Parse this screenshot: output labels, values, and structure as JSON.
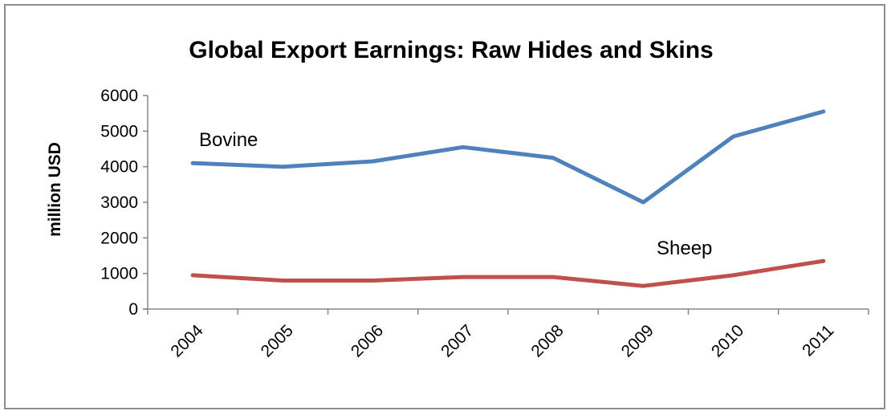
{
  "chart_data": {
    "type": "line",
    "title": "Global Export Earnings: Raw Hides and Skins",
    "xlabel": "",
    "ylabel": "million USD",
    "categories": [
      "2004",
      "2005",
      "2006",
      "2007",
      "2008",
      "2009",
      "2010",
      "2011"
    ],
    "ylim": [
      0,
      6000
    ],
    "yticks": [
      "0",
      "1000",
      "2000",
      "3000",
      "4000",
      "5000",
      "6000"
    ],
    "grid": false,
    "legend": "none",
    "series": [
      {
        "name": "Bovine",
        "color": "#4f81bd",
        "values": [
          4100,
          4000,
          4150,
          4550,
          4250,
          3000,
          4850,
          5550
        ]
      },
      {
        "name": "Sheep",
        "color": "#c0504d",
        "values": [
          950,
          800,
          800,
          900,
          900,
          650,
          950,
          1350
        ]
      }
    ]
  }
}
